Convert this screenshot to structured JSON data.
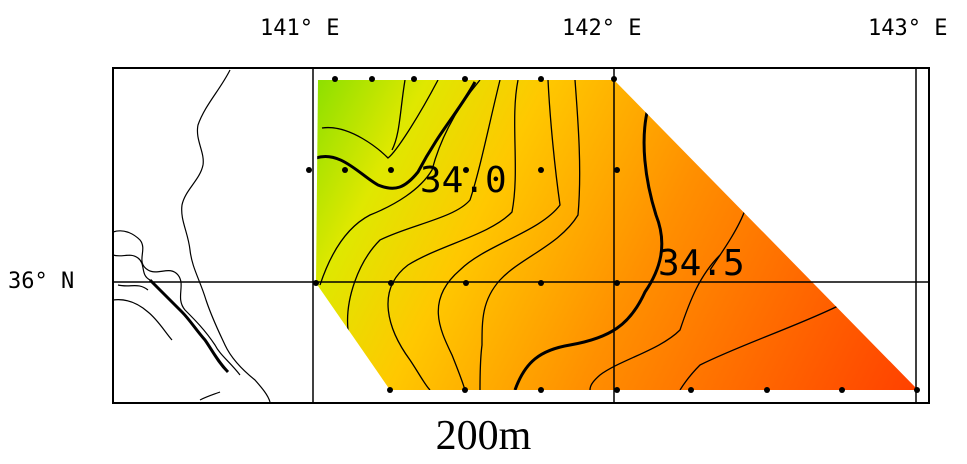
{
  "map": {
    "lon_labels": [
      "141° E",
      "142° E",
      "143° E"
    ],
    "lat_labels": [
      "36° N"
    ],
    "depth_label": "200m",
    "contour_labels": [
      "34.0",
      "34.5"
    ],
    "colors": {
      "low": "#8fe000",
      "mid": "#ffc000",
      "high": "#ff4000",
      "contour": "#000000",
      "frame": "#000000"
    }
  }
}
